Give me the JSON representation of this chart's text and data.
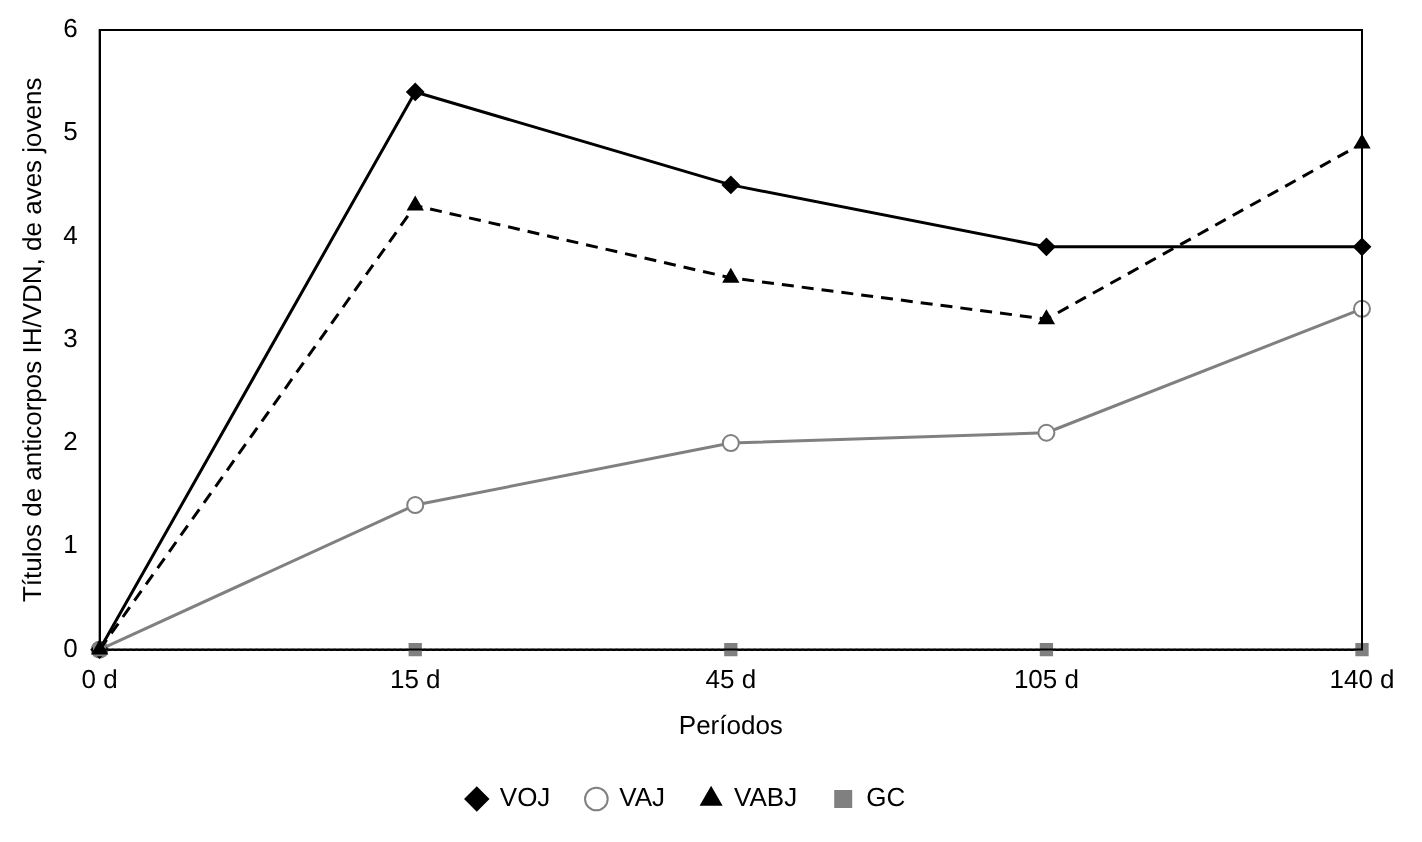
{
  "chart_data": {
    "type": "line",
    "xlabel": "Períodos",
    "ylabel": "Títulos de anticorpos IH/VDN, de aves jovens",
    "categories": [
      "0 d",
      "15 d",
      "45 d",
      "105 d",
      "140 d"
    ],
    "ylim": [
      0,
      6
    ],
    "yticks": [
      0,
      1,
      2,
      3,
      4,
      5,
      6
    ],
    "grid": false,
    "legend": "bottom",
    "series": [
      {
        "name": "VOJ",
        "color": "#000000",
        "values": [
          0,
          5.4,
          4.5,
          3.9,
          3.9
        ],
        "marker": "diamond",
        "line_style": "solid"
      },
      {
        "name": "VAJ",
        "color": "#808080",
        "values": [
          0,
          1.4,
          2.0,
          2.1,
          3.3
        ],
        "marker": "circle",
        "line_style": "solid"
      },
      {
        "name": "VABJ",
        "color": "#000000",
        "values": [
          0,
          4.3,
          3.6,
          3.2,
          4.9
        ],
        "marker": "triangle",
        "line_style": "dashed"
      },
      {
        "name": "GC",
        "color": "#808080",
        "values": [
          0,
          0,
          0,
          0,
          0
        ],
        "marker": "square",
        "line_style": "dotted"
      }
    ]
  }
}
